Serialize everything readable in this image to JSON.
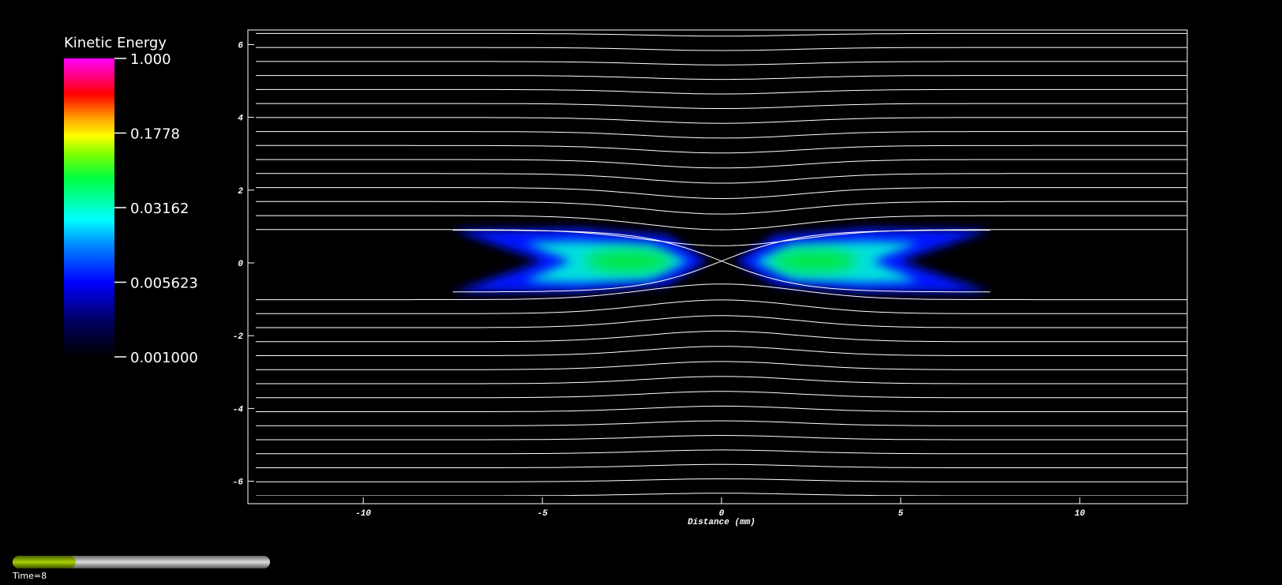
{
  "chart_data": {
    "type": "field",
    "x_label": "Distance (mm)",
    "xlim": [
      -13,
      13
    ],
    "xticks": [
      -10,
      -5,
      0,
      5,
      10
    ],
    "ylim": [
      -6.4,
      6.4
    ],
    "yticks": [
      -6,
      -4,
      -2,
      0,
      2,
      4,
      6
    ],
    "colorbar": {
      "title": "Kinetic Energy",
      "scale": "log",
      "lim": [
        0.001,
        1
      ],
      "ticks": [
        {
          "value": 1,
          "label": "1.000"
        },
        0.1778,
        0.03162,
        0.005623,
        {
          "value": 0.001,
          "label": "0.001000"
        }
      ]
    }
  },
  "time_label": "Time=8"
}
